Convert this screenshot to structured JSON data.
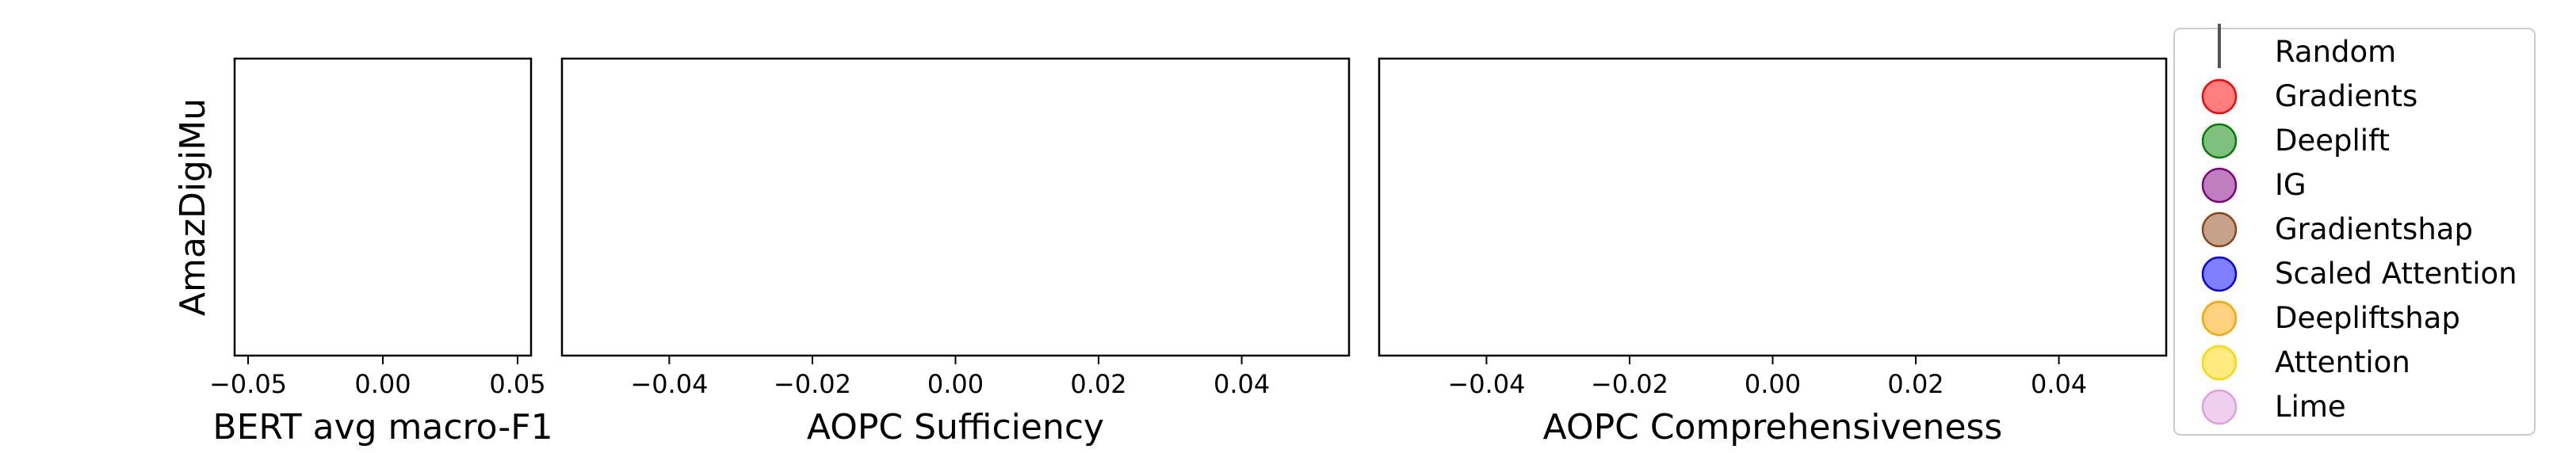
{
  "chart_data": [
    {
      "type": "scatter",
      "title": "",
      "ylabel": "AmazDigiMu",
      "xlabel": "BERT avg macro-F1",
      "xlim": [
        -0.055,
        0.055
      ],
      "xticks": [
        -0.05,
        0.0,
        0.05
      ],
      "xtick_labels": [
        "−0.05",
        "0.00",
        "0.05"
      ],
      "series": []
    },
    {
      "type": "scatter",
      "title": "",
      "xlabel": "AOPC Sufficiency",
      "xlim": [
        -0.055,
        0.055
      ],
      "xticks": [
        -0.04,
        -0.02,
        0.0,
        0.02,
        0.04
      ],
      "xtick_labels": [
        "−0.04",
        "−0.02",
        "0.00",
        "0.02",
        "0.04"
      ],
      "series": []
    },
    {
      "type": "scatter",
      "title": "",
      "xlabel": "AOPC Comprehensiveness",
      "xlim": [
        -0.055,
        0.055
      ],
      "xticks": [
        -0.04,
        -0.02,
        0.0,
        0.02,
        0.04
      ],
      "xtick_labels": [
        "−0.04",
        "−0.02",
        "0.00",
        "0.02",
        "0.04"
      ],
      "series": []
    }
  ],
  "legend": {
    "placement": "right",
    "entries": [
      {
        "label": "Random",
        "marker": "line",
        "color": "#555555"
      },
      {
        "label": "Gradients",
        "marker": "circle",
        "color": "#ff0000"
      },
      {
        "label": "Deeplift",
        "marker": "circle",
        "color": "#008000"
      },
      {
        "label": "IG",
        "marker": "circle",
        "color": "#800080"
      },
      {
        "label": "Gradientshap",
        "marker": "circle",
        "color": "#8b4513"
      },
      {
        "label": "Scaled Attention",
        "marker": "circle",
        "color": "#0000ff"
      },
      {
        "label": "Deepliftshap",
        "marker": "circle",
        "color": "#ffa500"
      },
      {
        "label": "Attention",
        "marker": "circle",
        "color": "#ffd700"
      },
      {
        "label": "Lime",
        "marker": "circle",
        "color": "#dda0dd"
      }
    ]
  }
}
